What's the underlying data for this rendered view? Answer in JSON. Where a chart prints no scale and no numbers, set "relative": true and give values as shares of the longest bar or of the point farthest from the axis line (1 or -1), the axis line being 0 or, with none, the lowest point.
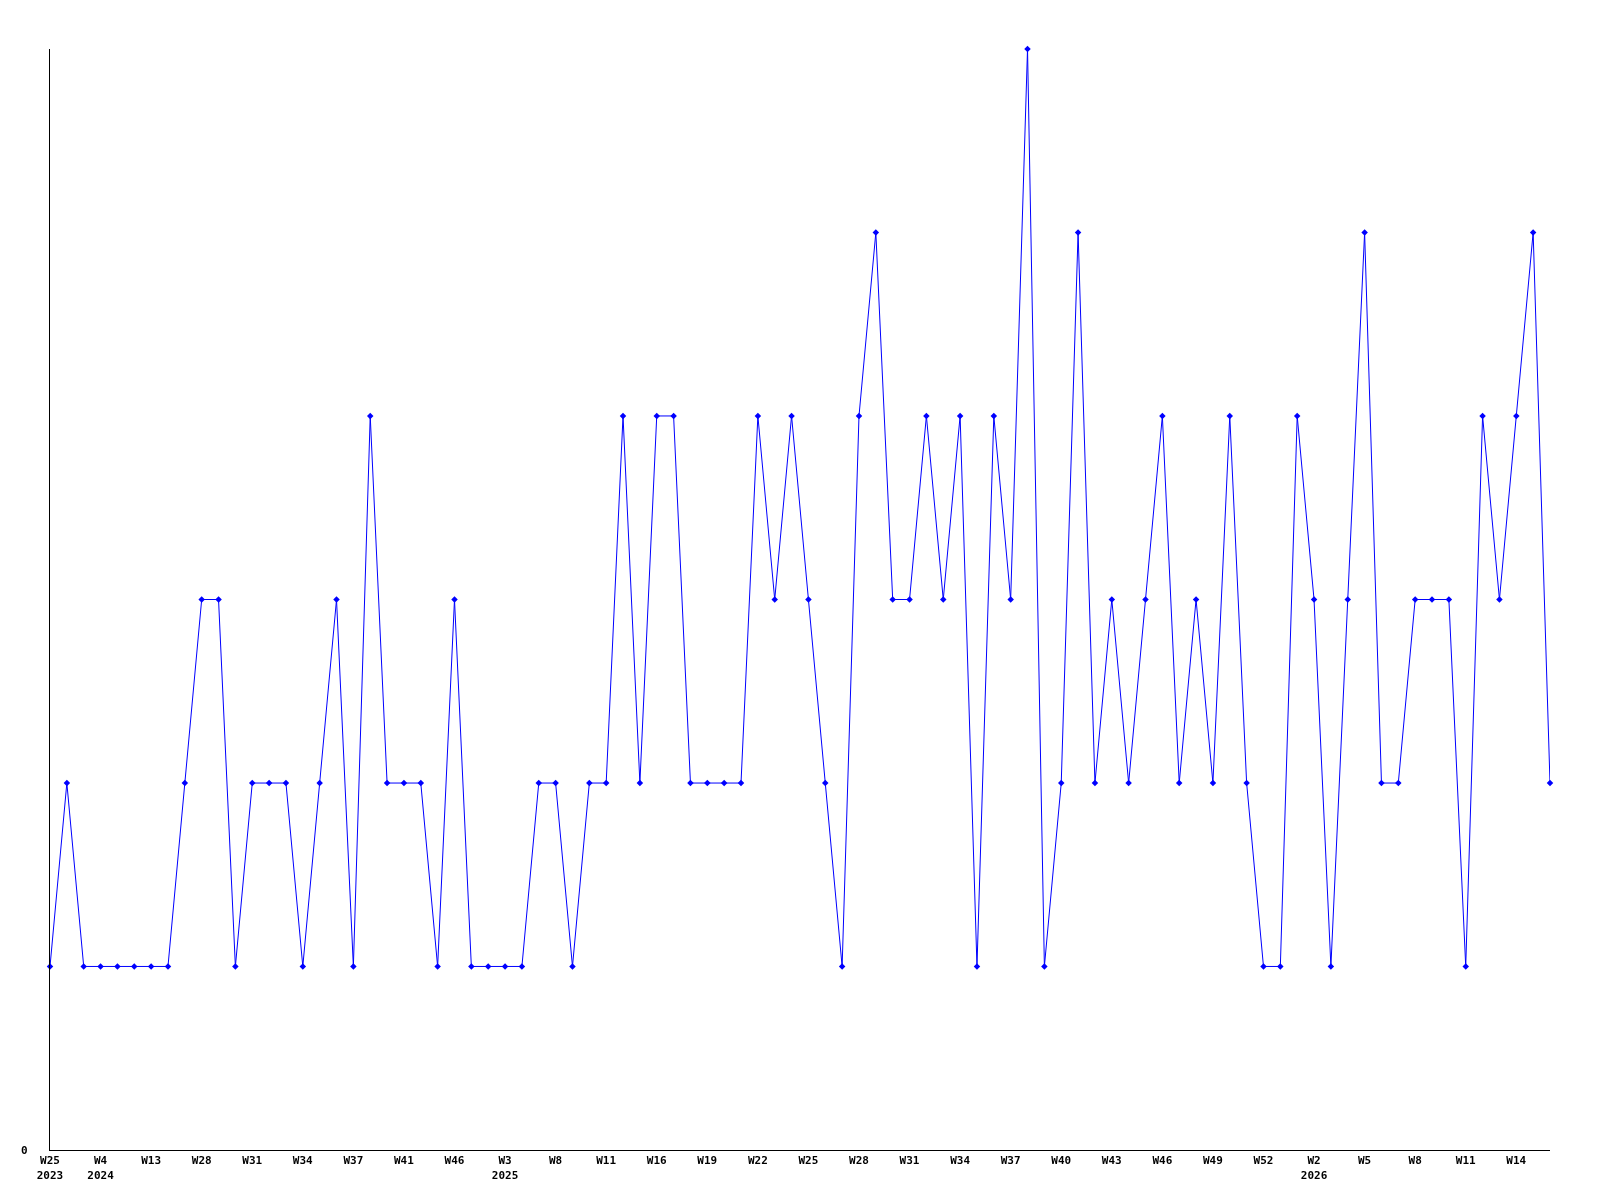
{
  "chart_data": {
    "type": "line",
    "relative": true,
    "color": "#0000ff",
    "marker": "diamond",
    "line_style": "solid",
    "legend": false,
    "annotations": [
      "0"
    ],
    "categories": [
      "W25\n2023",
      null,
      null,
      "W4\n2024",
      null,
      null,
      "W13",
      null,
      null,
      "W28",
      null,
      null,
      "W31",
      null,
      null,
      "W34",
      null,
      null,
      "W37",
      null,
      null,
      "W41",
      null,
      null,
      "W46",
      null,
      null,
      "W3\n2025",
      null,
      null,
      "W8",
      null,
      null,
      "W11",
      null,
      null,
      "W16",
      null,
      null,
      "W19",
      null,
      null,
      "W22",
      null,
      null,
      "W25",
      null,
      null,
      "W28",
      null,
      null,
      "W31",
      null,
      null,
      "W34",
      null,
      null,
      "W37",
      null,
      null,
      "W40",
      null,
      null,
      "W43",
      null,
      null,
      "W46",
      null,
      null,
      "W49",
      null,
      null,
      "W52",
      null,
      null,
      "W2\n2026",
      null,
      null,
      "W5",
      null,
      null,
      "W8",
      null,
      null,
      "W11",
      null,
      null,
      "W14",
      null,
      null
    ],
    "values": [
      0.1667,
      0.3333,
      0.1667,
      0.1667,
      0.1667,
      0.1667,
      0.1667,
      0.1667,
      0.3333,
      0.5,
      0.5,
      0.1667,
      0.3333,
      0.3333,
      0.3333,
      0.1667,
      0.3333,
      0.5,
      0.1667,
      0.6667,
      0.3333,
      0.3333,
      0.3333,
      0.1667,
      0.5,
      0.1667,
      0.1667,
      0.1667,
      0.1667,
      0.3333,
      0.3333,
      0.1667,
      0.3333,
      0.3333,
      0.6667,
      0.3333,
      0.6667,
      0.6667,
      0.3333,
      0.3333,
      0.3333,
      0.3333,
      0.6667,
      0.5,
      0.6667,
      0.5,
      0.3333,
      0.1667,
      0.6667,
      0.8333,
      0.5,
      0.5,
      0.6667,
      0.5,
      0.6667,
      0.1667,
      0.6667,
      0.5,
      1,
      0.1667,
      0.3333,
      0.8333,
      0.3333,
      0.5,
      0.3333,
      0.5,
      0.6667,
      0.3333,
      0.5,
      0.3333,
      0.6667,
      0.3333,
      0.1667,
      0.1667,
      0.6667,
      0.5,
      0.1667,
      0.5,
      0.8333,
      0.3333,
      0.3333,
      0.5,
      0.5,
      0.5,
      0.1667,
      0.6667,
      0.5,
      0.6667,
      0.8333,
      0.3333
    ]
  }
}
